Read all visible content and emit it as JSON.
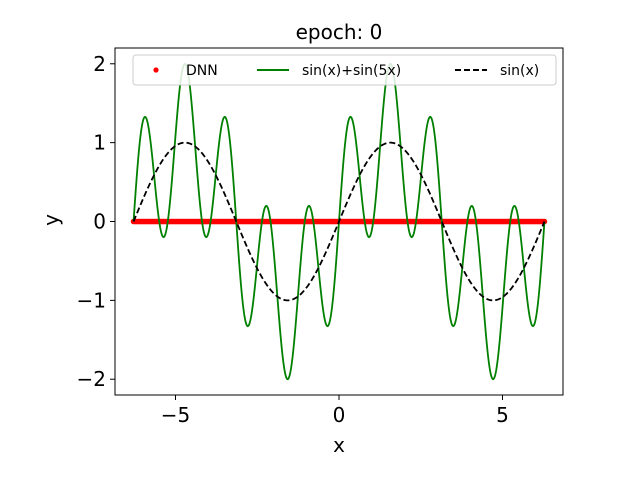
{
  "chart_data": {
    "type": "line",
    "title": "epoch: 0",
    "xlabel": "x",
    "ylabel": "y",
    "xlim": [
      -6.85,
      6.85
    ],
    "ylim": [
      -2.2,
      2.2
    ],
    "xticks": [
      -5,
      0,
      5
    ],
    "xtick_labels": [
      "−5",
      "0",
      "5"
    ],
    "yticks": [
      -2,
      -1,
      0,
      1,
      2
    ],
    "ytick_labels": [
      "−2",
      "−1",
      "0",
      "1",
      "2"
    ],
    "grid": false,
    "legend": {
      "placement": "top",
      "entries": [
        "DNN",
        "sin(x)+sin(5x)",
        "sin(x)"
      ]
    },
    "series": [
      {
        "name": "DNN",
        "style": "dots",
        "color": "#ff0000",
        "x_range": [
          -6.283,
          6.283
        ],
        "y_constant": 0
      },
      {
        "name": "sin(x)+sin(5x)",
        "style": "solid",
        "color": "#008000",
        "x_range": [
          -6.283,
          6.283
        ],
        "function": "sin(x)+sin(5x)"
      },
      {
        "name": "sin(x)",
        "style": "dashed",
        "color": "#000000",
        "x_range": [
          -6.283,
          6.283
        ],
        "function": "sin(x)"
      }
    ]
  }
}
